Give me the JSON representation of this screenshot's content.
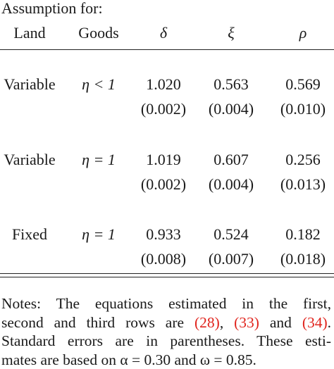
{
  "header": {
    "title": "Assumption for:",
    "columns": [
      "Land",
      "Goods",
      "δ",
      "ξ",
      "ρ"
    ]
  },
  "table": {
    "rows": [
      {
        "land": "Variable",
        "goods": "η < 1",
        "estimates": [
          "1.020",
          "0.563",
          "0.569"
        ],
        "errors": [
          "(0.002)",
          "(0.004)",
          "(0.010)"
        ]
      },
      {
        "land": "Variable",
        "goods": "η = 1",
        "estimates": [
          "1.019",
          "0.607",
          "0.256"
        ],
        "errors": [
          "(0.002)",
          "(0.004)",
          "(0.013)"
        ]
      },
      {
        "land": "Fixed",
        "goods": "η = 1",
        "estimates": [
          "0.933",
          "0.524",
          "0.182"
        ],
        "errors": [
          "(0.008)",
          "(0.007)",
          "(0.018)"
        ]
      }
    ]
  },
  "notes": {
    "lines": [
      "Notes: The equations estimated in the first,",
      [
        "second and third rows are ",
        "(28)",
        ", ",
        "(33)",
        " and ",
        "(34)",
        "."
      ],
      "Standard errors are in parentheses. These esti-",
      "mates are based on α = 0.30 and ω = 0.85."
    ]
  }
}
